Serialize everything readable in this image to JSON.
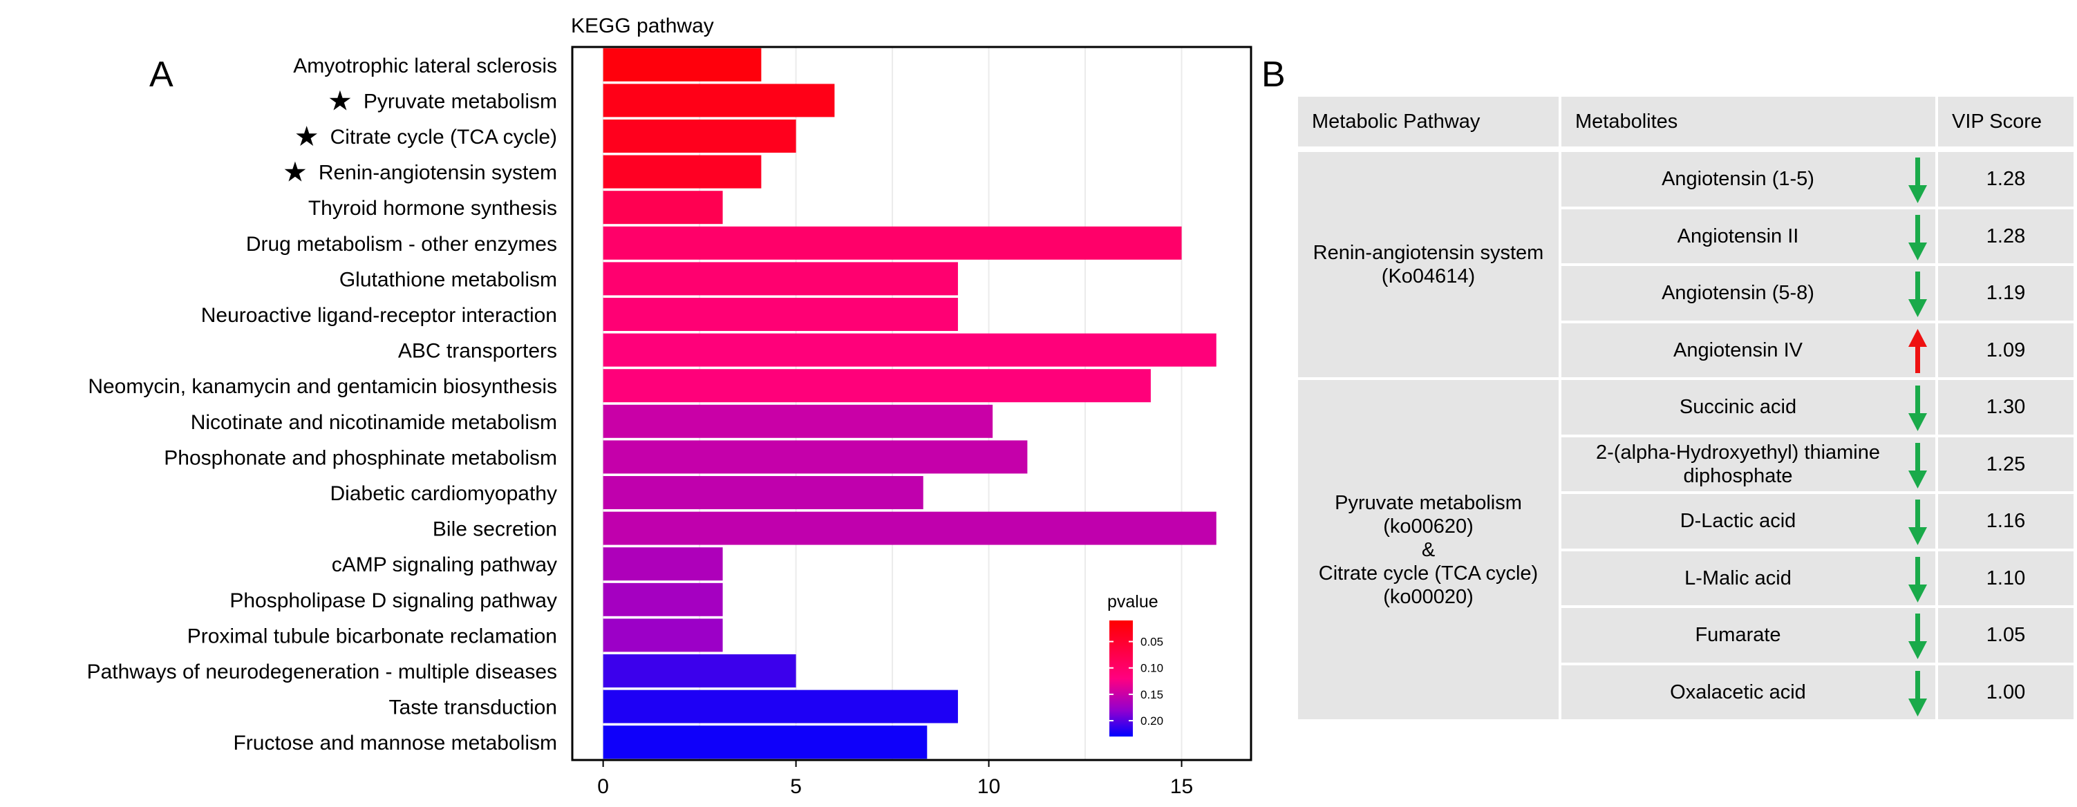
{
  "panel_a_letter": "A",
  "panel_b_letter": "B",
  "chart_data": {
    "type": "bar",
    "orientation": "horizontal",
    "title": "KEGG pathway",
    "xlabel": "",
    "ylabel": "",
    "xlim": [
      -0.8,
      16.8
    ],
    "xticks": [
      0,
      5,
      10,
      15
    ],
    "grid": true,
    "legend": {
      "title": "pvalue",
      "position": "bottom-right",
      "ticks": [
        "0.05",
        "0.10",
        "0.15",
        "0.20"
      ],
      "tick_values": [
        0.05,
        0.1,
        0.15,
        0.2
      ],
      "range": [
        0.01,
        0.23
      ],
      "colors": [
        "#ff0000",
        "#0000ff"
      ]
    },
    "categories": [
      "Amyotrophic lateral sclerosis",
      "Pyruvate metabolism",
      "Citrate cycle (TCA cycle)",
      "Renin-angiotensin system",
      "Thyroid hormone synthesis",
      "Drug metabolism - other enzymes",
      "Glutathione metabolism",
      "Neuroactive ligand-receptor interaction",
      "ABC transporters",
      "Neomycin, kanamycin and gentamicin biosynthesis",
      "Nicotinate and nicotinamide metabolism",
      "Phosphonate and phosphinate metabolism",
      "Diabetic cardiomyopathy",
      "Bile secretion",
      "cAMP signaling pathway",
      "Phospholipase D signaling pathway",
      "Proximal tubule bicarbonate reclamation",
      "Pathways of neurodegeneration - multiple diseases",
      "Taste transduction",
      "Fructose and mannose metabolism"
    ],
    "starred": [
      false,
      true,
      true,
      true,
      false,
      false,
      false,
      false,
      false,
      false,
      false,
      false,
      false,
      false,
      false,
      false,
      false,
      false,
      false,
      false
    ],
    "star_symbol": "★",
    "values": [
      4.1,
      6.0,
      5.0,
      4.1,
      3.1,
      15.0,
      9.2,
      9.2,
      15.9,
      14.2,
      10.1,
      11.0,
      8.3,
      15.9,
      3.1,
      3.1,
      3.1,
      5.0,
      9.2,
      8.4
    ],
    "pvalues": [
      0.02,
      0.03,
      0.035,
      0.04,
      0.08,
      0.1,
      0.105,
      0.11,
      0.115,
      0.115,
      0.15,
      0.152,
      0.155,
      0.155,
      0.165,
      0.17,
      0.175,
      0.21,
      0.22,
      0.225
    ]
  },
  "table": {
    "headers": [
      "Metabolic Pathway",
      "Metabolites",
      "VIP Score"
    ],
    "groups": [
      {
        "pathway_lines": [
          "Renin-angiotensin system",
          "(Ko04614)"
        ],
        "row_start": 0,
        "row_count": 4
      },
      {
        "pathway_lines": [
          "Pyruvate metabolism",
          "(ko00620)",
          "&",
          "Citrate cycle (TCA cycle)",
          "(ko00020)"
        ],
        "row_start": 4,
        "row_count": 6
      }
    ],
    "rows": [
      {
        "metabolite_lines": [
          "Angiotensin (1-5)"
        ],
        "direction": "down",
        "vip": "1.28"
      },
      {
        "metabolite_lines": [
          "Angiotensin II"
        ],
        "direction": "down",
        "vip": "1.28"
      },
      {
        "metabolite_lines": [
          "Angiotensin (5-8)"
        ],
        "direction": "down",
        "vip": "1.19"
      },
      {
        "metabolite_lines": [
          "Angiotensin IV"
        ],
        "direction": "up",
        "vip": "1.09"
      },
      {
        "metabolite_lines": [
          "Succinic acid"
        ],
        "direction": "down",
        "vip": "1.30"
      },
      {
        "metabolite_lines": [
          "2-(alpha-Hydroxyethyl) thiamine",
          "diphosphate"
        ],
        "direction": "down",
        "vip": "1.25"
      },
      {
        "metabolite_lines": [
          "D-Lactic acid"
        ],
        "direction": "down",
        "vip": "1.16"
      },
      {
        "metabolite_lines": [
          "L-Malic acid"
        ],
        "direction": "down",
        "vip": "1.10"
      },
      {
        "metabolite_lines": [
          "Fumarate"
        ],
        "direction": "down",
        "vip": "1.05"
      },
      {
        "metabolite_lines": [
          "Oxalacetic acid"
        ],
        "direction": "down",
        "vip": "1.00"
      }
    ],
    "colors": {
      "down": "#1aaa4a",
      "up": "#ee1111",
      "cell_bg": "#e5e5e5"
    }
  }
}
